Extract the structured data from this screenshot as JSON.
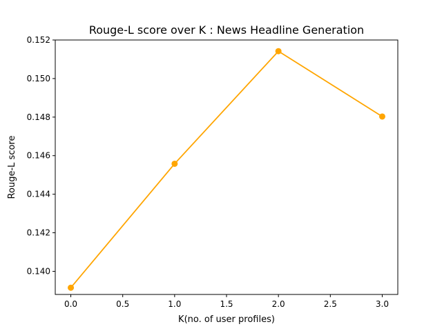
{
  "chart_data": {
    "type": "line",
    "title": "Rouge-L score over K  : News Headline Generation",
    "xlabel": "K(no. of user profiles)",
    "ylabel": "Rouge-L score",
    "xlim": [
      -0.15,
      3.15
    ],
    "ylim": [
      0.1388,
      0.152
    ],
    "xticks": [
      0.0,
      0.5,
      1.0,
      1.5,
      2.0,
      2.5,
      3.0
    ],
    "xtick_labels": [
      "0.0",
      "0.5",
      "1.0",
      "1.5",
      "2.0",
      "2.5",
      "3.0"
    ],
    "yticks": [
      0.14,
      0.142,
      0.144,
      0.146,
      0.148,
      0.15,
      0.152
    ],
    "ytick_labels": [
      "0.140",
      "0.142",
      "0.144",
      "0.146",
      "0.148",
      "0.150",
      "0.152"
    ],
    "grid": false,
    "legend": "none",
    "series": [
      {
        "color": "#FFA500",
        "marker": "circle",
        "x": [
          0,
          1,
          2,
          3
        ],
        "y": [
          0.13915,
          0.14558,
          0.15142,
          0.14803
        ]
      }
    ]
  }
}
